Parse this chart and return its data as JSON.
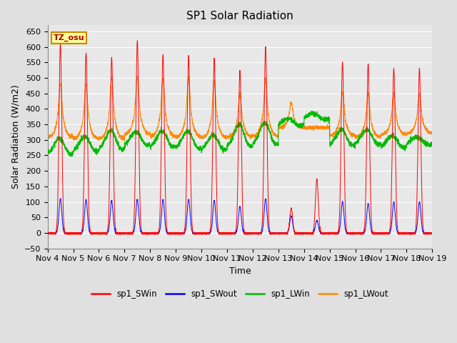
{
  "title": "SP1 Solar Radiation",
  "xlabel": "Time",
  "ylabel": "Solar Radiation (W/m2)",
  "ylim": [
    -50,
    670
  ],
  "colors": {
    "sp1_SWin": "#ff0000",
    "sp1_SWout": "#0000ff",
    "sp1_LWin": "#00bb00",
    "sp1_LWout": "#ff8800"
  },
  "background_color": "#e0e0e0",
  "plot_bg_color": "#e8e8e8",
  "grid_color": "#ffffff",
  "annotation_text": "TZ_osu",
  "annotation_bg": "#ffff99",
  "annotation_border": "#cc8800",
  "num_days": 15,
  "start_day": 4,
  "points_per_day": 288,
  "SWin_peaks": [
    610,
    580,
    565,
    620,
    575,
    570,
    560,
    525,
    600,
    80,
    175,
    550,
    545,
    530,
    530
  ],
  "SWout_peaks": [
    110,
    108,
    105,
    108,
    108,
    108,
    105,
    85,
    110,
    55,
    40,
    100,
    95,
    100,
    100
  ],
  "LWin_base": [
    260,
    270,
    275,
    290,
    283,
    278,
    275,
    285,
    290,
    355,
    375,
    288,
    292,
    282,
    292
  ],
  "LWin_bump": [
    40,
    35,
    50,
    30,
    40,
    45,
    35,
    60,
    60,
    5,
    0,
    40,
    35,
    25,
    10
  ],
  "LWout_base": [
    310,
    305,
    305,
    320,
    312,
    310,
    308,
    310,
    312,
    340,
    340,
    315,
    310,
    318,
    322
  ],
  "LWout_peak": [
    170,
    175,
    195,
    185,
    185,
    190,
    180,
    140,
    185,
    80,
    0,
    140,
    140,
    130,
    125
  ]
}
